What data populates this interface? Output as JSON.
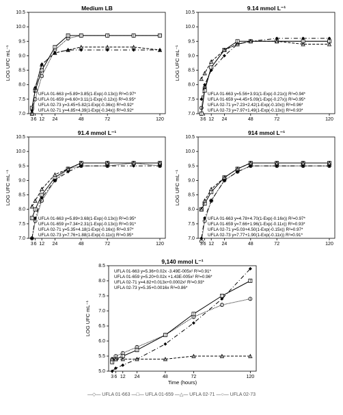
{
  "global": {
    "ylabel": "LOG UFC mL⁻¹",
    "xlabel": "Time (hours)",
    "xticks": [
      3,
      6,
      12,
      24,
      48,
      72,
      120
    ],
    "yticks": [
      7.0,
      7.5,
      8.0,
      8.5,
      9.0,
      9.5,
      10.0,
      10.5
    ],
    "font_tick": 7,
    "font_title": 8.5,
    "font_eq": 6.3,
    "line_color": "#000000",
    "bg": "#ffffff",
    "axis_color": "#000000"
  },
  "panels": [
    {
      "title": "Medium LB",
      "eqs": [
        "UFLA 01-663  y=5.89+3.85(1-Exp(-0.13x))  R²=0.97*",
        "UFLA 01-659  y=6.60+3.11(1-Exp(-0.12x))  R²=0.95*",
        "UFLA 02-73  y=3.45+5.82(1-Exp(-0.36x))  R²=0.92*",
        "UFLA 02-71  y=4.85+4.39(1-Exp(-0.34x))  R²=0.92*"
      ],
      "series": [
        {
          "name": "01-663",
          "dash": "1 1",
          "marker": "circle",
          "vals": [
            7.0,
            7.5,
            8.3,
            9.2,
            9.6,
            9.7,
            9.7,
            9.7,
            9.7
          ]
        },
        {
          "name": "01-659",
          "dash": "",
          "marker": "square",
          "vals": [
            7.2,
            7.8,
            8.5,
            9.3,
            9.7,
            9.7,
            9.7,
            9.7,
            9.7
          ]
        },
        {
          "name": "02-73",
          "dash": "4 2",
          "marker": "triangle",
          "vals": [
            7.0,
            7.9,
            8.7,
            9.1,
            9.2,
            9.3,
            9.3,
            9.3,
            9.2
          ]
        },
        {
          "name": "02-71",
          "dash": "6 3 1 3",
          "marker": "diamond",
          "vals": [
            7.1,
            7.9,
            8.7,
            9.1,
            9.2,
            9.2,
            9.2,
            9.2,
            9.2
          ]
        }
      ]
    },
    {
      "title": "9.14 mmol L⁻¹",
      "eqs": [
        "UFLA 01-663  y=5.56+3.91(1-Exp(-0.21x))  R²=0.94*",
        "UFLA 01-659  y=4.45+5.09(1-Exp(-0.27x))  R²=0.95*",
        "UFLA 02-71  y=7.23+2.42(1-Exp(-0.10x))  R²=0.96*",
        "UFLA 02-73  y=7.97+1.49(1-Exp(-0.13x))  R²=0.93*"
      ],
      "series": [
        {
          "name": "01-663",
          "dash": "1 1",
          "marker": "circle",
          "vals": [
            7.2,
            7.9,
            8.6,
            9.2,
            9.4,
            9.5,
            9.5,
            9.5,
            9.5
          ]
        },
        {
          "name": "01-659",
          "dash": "",
          "marker": "square",
          "vals": [
            7.0,
            7.8,
            8.6,
            9.2,
            9.5,
            9.5,
            9.5,
            9.5,
            9.5
          ]
        },
        {
          "name": "02-71",
          "dash": "6 3 1 3",
          "marker": "diamond",
          "vals": [
            7.5,
            8.0,
            8.5,
            9.0,
            9.4,
            9.5,
            9.6,
            9.6,
            9.6
          ]
        },
        {
          "name": "02-73",
          "dash": "4 2",
          "marker": "triangle",
          "vals": [
            8.2,
            8.4,
            8.8,
            9.2,
            9.4,
            9.5,
            9.5,
            9.4,
            9.4
          ]
        }
      ]
    },
    {
      "title": "91.4 mmol L⁻¹",
      "eqs": [
        "UFLA 01-663  y=5.89+3.68(1-Exp(-0.13x))  R²=0.95*",
        "UFLA 01-659  y=7.34+2.31(1-Exp(-0.13x))  R²=0.91*",
        "UFLA 02-71  y=5.35+4.18(1-Exp(-0.16x))  R²=0.97*",
        "UFLA 02-73  y=7.76+1.88(1-Exp(-0.11x))  R²=0.95*"
      ],
      "series": [
        {
          "name": "01-663",
          "dash": "1 1",
          "marker": "circle",
          "vals": [
            7.0,
            7.6,
            8.3,
            9.0,
            9.4,
            9.5,
            9.5,
            9.6,
            9.5
          ]
        },
        {
          "name": "01-659",
          "dash": "",
          "marker": "square",
          "vals": [
            7.7,
            8.0,
            8.5,
            9.1,
            9.4,
            9.6,
            9.6,
            9.6,
            9.6
          ]
        },
        {
          "name": "02-71",
          "dash": "6 3 1 3",
          "marker": "diamond",
          "vals": [
            7.0,
            7.7,
            8.4,
            9.0,
            9.3,
            9.5,
            9.5,
            9.5,
            9.5
          ]
        },
        {
          "name": "02-73",
          "dash": "4 2",
          "marker": "triangle",
          "vals": [
            8.1,
            8.3,
            8.7,
            9.2,
            9.4,
            9.6,
            9.6,
            9.6,
            9.6
          ]
        }
      ]
    },
    {
      "title": "914 mmol L⁻¹",
      "eqs": [
        "UFLA 01-663  y=4.78+4.70(1-Exp(-0.16x))  R²=0.97*",
        "UFLA 01-659  y=7.66+1.96(1-Exp(-0.11x))  R²=0.93*",
        "UFLA 02-71  y=5.03+4.50(1-Exp(-0.15x))  R²=0.97*",
        "UFLA 02-73  y=7.77+1.90(1-Exp(-0.11x))  R²=0.91*"
      ],
      "series": [
        {
          "name": "01-663",
          "dash": "1 1",
          "marker": "circle",
          "vals": [
            6.9,
            7.6,
            8.3,
            9.0,
            9.3,
            9.5,
            9.5,
            9.5,
            9.5
          ]
        },
        {
          "name": "01-659",
          "dash": "",
          "marker": "square",
          "vals": [
            8.0,
            8.2,
            8.6,
            9.1,
            9.4,
            9.6,
            9.6,
            9.6,
            9.6
          ]
        },
        {
          "name": "02-71",
          "dash": "6 3 1 3",
          "marker": "diamond",
          "vals": [
            7.0,
            7.7,
            8.3,
            9.0,
            9.3,
            9.5,
            9.5,
            9.5,
            9.5
          ]
        },
        {
          "name": "02-73",
          "dash": "4 2",
          "marker": "triangle",
          "vals": [
            8.0,
            8.3,
            8.7,
            9.1,
            9.4,
            9.6,
            9.6,
            9.6,
            9.6
          ]
        }
      ]
    }
  ],
  "bottom": {
    "title": "9,140 mmol L⁻¹",
    "yticks": [
      5.0,
      5.5,
      6.0,
      6.5,
      7.0,
      7.5,
      8.0,
      8.5
    ],
    "eqs": [
      "UFLA 01-663  y=5.36+0.02x -3.49E-005x²  R²=0.91*",
      "UFLA 01-659  y=5.20+0.02x +1.43E-005x²  R²=0.96*",
      "UFLA 02-71  y=4.82+0.013x+0.0002x²  R²=0.93*",
      "UFLA 02-73  y=5.35+0.0016x            R²=0.86*"
    ],
    "series": [
      {
        "name": "01-663",
        "dash": "1 1",
        "marker": "circle",
        "vals": [
          5.4,
          5.5,
          5.6,
          5.8,
          6.2,
          6.8,
          7.2,
          7.4
        ]
      },
      {
        "name": "01-659",
        "dash": "",
        "marker": "square",
        "vals": [
          5.3,
          5.4,
          5.5,
          5.7,
          6.2,
          6.9,
          7.5,
          8.0
        ]
      },
      {
        "name": "02-71",
        "dash": "6 3 1 3",
        "marker": "diamond",
        "vals": [
          5.0,
          5.1,
          5.2,
          5.4,
          5.9,
          6.6,
          7.4,
          8.4
        ]
      },
      {
        "name": "02-73",
        "dash": "4 2",
        "marker": "triangle",
        "vals": [
          5.4,
          5.4,
          5.4,
          5.4,
          5.4,
          5.5,
          5.5,
          5.5
        ]
      }
    ]
  },
  "legend_text": "—◇— UFLA 01-663      —□— UFLA 01-659      —△— UFLA 02-71      —○— UFLA 02-73"
}
